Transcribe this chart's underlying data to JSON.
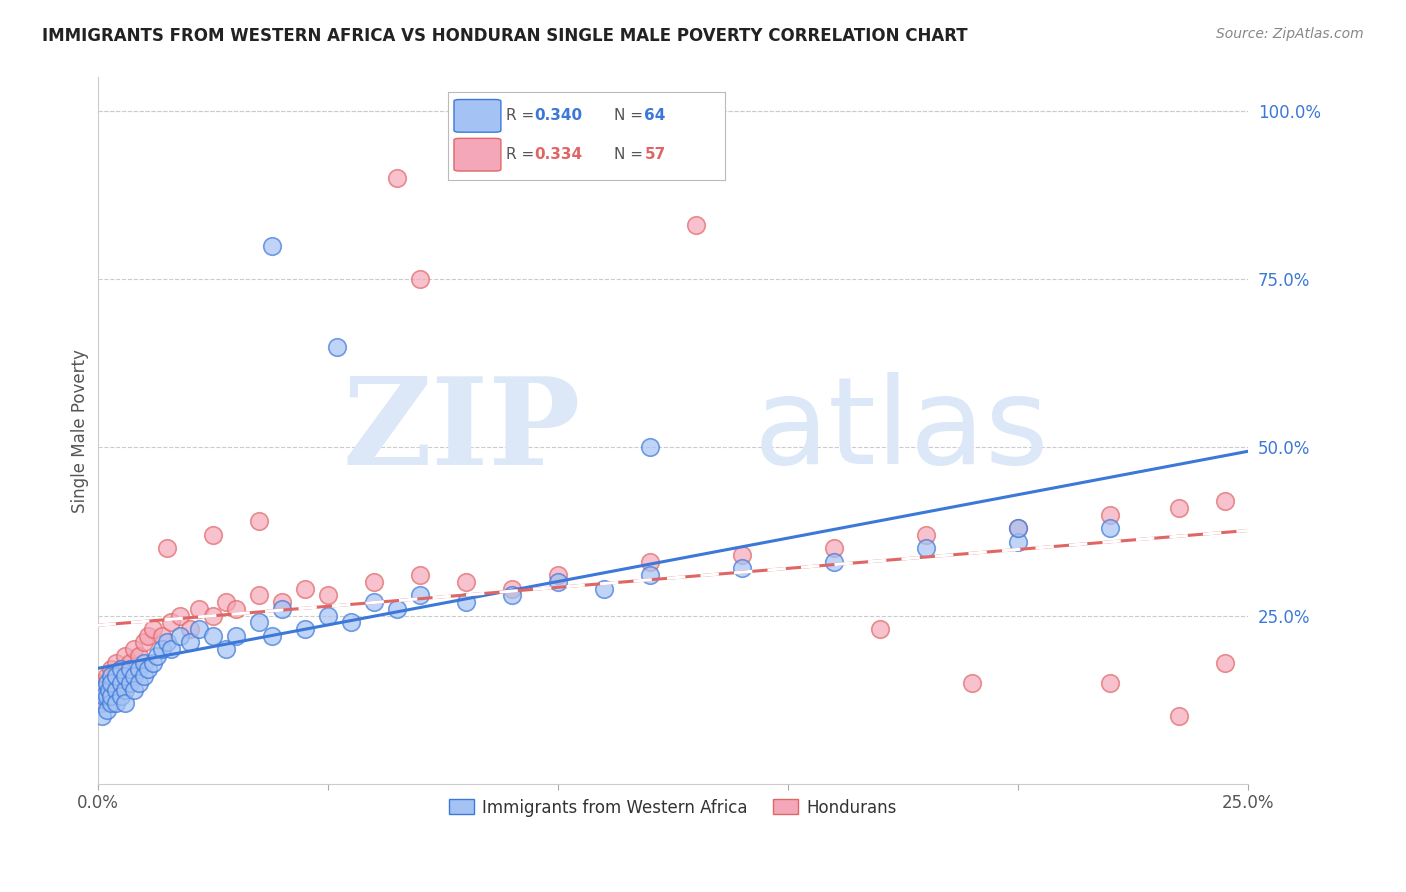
{
  "title": "IMMIGRANTS FROM WESTERN AFRICA VS HONDURAN SINGLE MALE POVERTY CORRELATION CHART",
  "source": "Source: ZipAtlas.com",
  "ylabel": "Single Male Poverty",
  "right_yticks": [
    "100.0%",
    "75.0%",
    "50.0%",
    "25.0%"
  ],
  "right_ytick_vals": [
    1.0,
    0.75,
    0.5,
    0.25
  ],
  "legend_label_blue": "Immigrants from Western Africa",
  "legend_label_pink": "Hondurans",
  "blue_color": "#a4c2f4",
  "pink_color": "#f4a7b9",
  "line_blue": "#3c78d8",
  "line_pink": "#e06666",
  "watermark_zip": "ZIP",
  "watermark_atlas": "atlas",
  "watermark_color": "#dce8f8",
  "background_color": "#ffffff",
  "xlim": [
    0.0,
    0.25
  ],
  "ylim": [
    0.0,
    1.05
  ],
  "blue_x": [
    0.0005,
    0.001,
    0.001,
    0.0015,
    0.002,
    0.002,
    0.002,
    0.0025,
    0.003,
    0.003,
    0.003,
    0.003,
    0.004,
    0.004,
    0.004,
    0.005,
    0.005,
    0.005,
    0.006,
    0.006,
    0.006,
    0.007,
    0.007,
    0.008,
    0.008,
    0.009,
    0.009,
    0.01,
    0.01,
    0.011,
    0.012,
    0.013,
    0.014,
    0.015,
    0.016,
    0.018,
    0.02,
    0.022,
    0.025,
    0.028,
    0.03,
    0.035,
    0.038,
    0.04,
    0.045,
    0.05,
    0.055,
    0.06,
    0.065,
    0.07,
    0.08,
    0.09,
    0.1,
    0.11,
    0.12,
    0.14,
    0.16,
    0.18,
    0.2,
    0.22,
    0.038,
    0.052,
    0.12,
    0.2
  ],
  "blue_y": [
    0.12,
    0.1,
    0.14,
    0.13,
    0.11,
    0.15,
    0.13,
    0.14,
    0.12,
    0.16,
    0.13,
    0.15,
    0.14,
    0.12,
    0.16,
    0.15,
    0.13,
    0.17,
    0.14,
    0.16,
    0.12,
    0.15,
    0.17,
    0.16,
    0.14,
    0.17,
    0.15,
    0.18,
    0.16,
    0.17,
    0.18,
    0.19,
    0.2,
    0.21,
    0.2,
    0.22,
    0.21,
    0.23,
    0.22,
    0.2,
    0.22,
    0.24,
    0.22,
    0.26,
    0.23,
    0.25,
    0.24,
    0.27,
    0.26,
    0.28,
    0.27,
    0.28,
    0.3,
    0.29,
    0.31,
    0.32,
    0.33,
    0.35,
    0.36,
    0.38,
    0.8,
    0.65,
    0.5,
    0.38
  ],
  "pink_x": [
    0.0005,
    0.001,
    0.001,
    0.0015,
    0.002,
    0.002,
    0.003,
    0.003,
    0.003,
    0.004,
    0.004,
    0.005,
    0.005,
    0.006,
    0.006,
    0.007,
    0.008,
    0.009,
    0.01,
    0.011,
    0.012,
    0.014,
    0.016,
    0.018,
    0.02,
    0.022,
    0.025,
    0.028,
    0.03,
    0.035,
    0.04,
    0.045,
    0.05,
    0.06,
    0.07,
    0.08,
    0.09,
    0.1,
    0.12,
    0.14,
    0.16,
    0.18,
    0.2,
    0.22,
    0.235,
    0.245,
    0.015,
    0.025,
    0.035,
    0.065,
    0.13,
    0.17,
    0.19,
    0.22,
    0.235,
    0.245,
    0.07
  ],
  "pink_y": [
    0.13,
    0.15,
    0.12,
    0.14,
    0.16,
    0.13,
    0.15,
    0.17,
    0.14,
    0.16,
    0.18,
    0.15,
    0.17,
    0.16,
    0.19,
    0.18,
    0.2,
    0.19,
    0.21,
    0.22,
    0.23,
    0.22,
    0.24,
    0.25,
    0.23,
    0.26,
    0.25,
    0.27,
    0.26,
    0.28,
    0.27,
    0.29,
    0.28,
    0.3,
    0.31,
    0.3,
    0.29,
    0.31,
    0.33,
    0.34,
    0.35,
    0.37,
    0.38,
    0.4,
    0.41,
    0.42,
    0.35,
    0.37,
    0.39,
    0.9,
    0.83,
    0.23,
    0.15,
    0.15,
    0.1,
    0.18,
    0.75
  ]
}
